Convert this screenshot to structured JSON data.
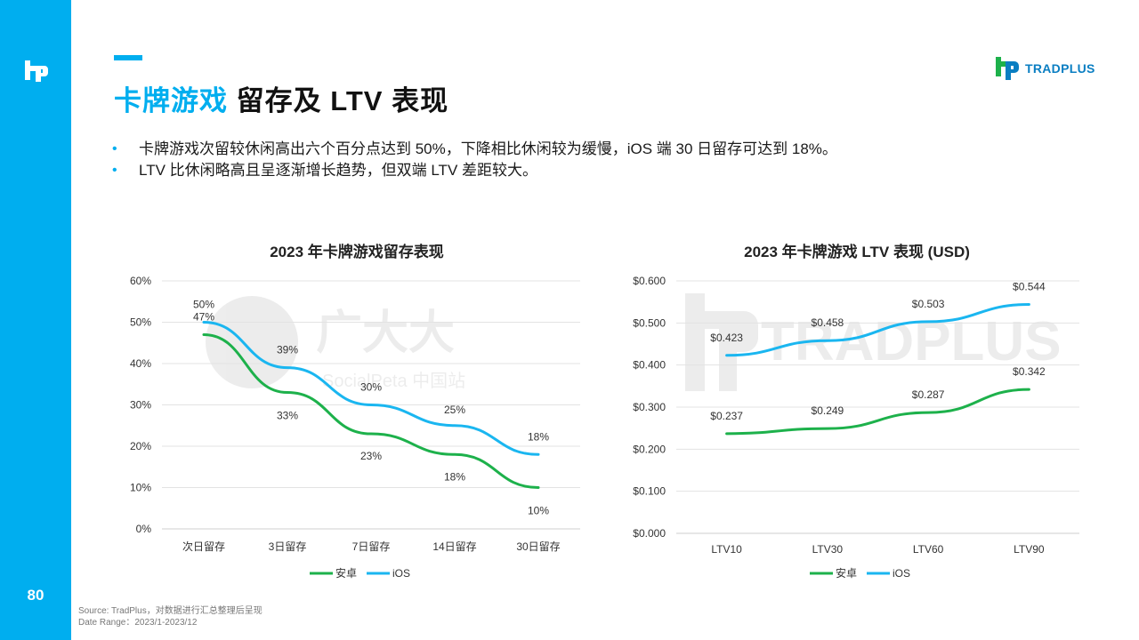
{
  "page": {
    "number": "80",
    "title_highlight": "卡牌游戏",
    "title_rest": "留存及 LTV 表现",
    "brand": "TRADPLUS",
    "bullets": [
      "卡牌游戏次留较休闲高出六个百分点达到 50%，下降相比休闲较为缓慢，iOS 端 30 日留存可达到 18%。",
      "LTV 比休闲略高且呈逐渐增长趋势，但双端 LTV 差距较大。"
    ],
    "source_line1": "Source: TradPlus，对数据进行汇总整理后呈现",
    "source_line2": "Date Range：2023/1-2023/12",
    "watermark_left_main": "广大大",
    "watermark_left_sub": "SocialPeta 中国站",
    "watermark_right": "TRADPLUS"
  },
  "colors": {
    "accent": "#00AEEF",
    "android": "#1DB14B",
    "ios": "#1AB6F0"
  },
  "chart_data": [
    {
      "type": "line",
      "title": "2023 年卡牌游戏留存表现",
      "categories": [
        "次日留存",
        "3日留存",
        "7日留存",
        "14日留存",
        "30日留存"
      ],
      "ylim": [
        0,
        60
      ],
      "y_ticks": [
        "0%",
        "10%",
        "20%",
        "30%",
        "40%",
        "50%",
        "60%"
      ],
      "y_tick_values": [
        0,
        10,
        20,
        30,
        40,
        50,
        60
      ],
      "series": [
        {
          "name": "安卓",
          "values": [
            47,
            33,
            23,
            18,
            10
          ],
          "labels": [
            "47%",
            "33%",
            "23%",
            "18%",
            "10%"
          ]
        },
        {
          "name": "iOS",
          "values": [
            50,
            39,
            30,
            25,
            18
          ],
          "labels": [
            "50%",
            "39%",
            "30%",
            "25%",
            "18%"
          ]
        }
      ],
      "legend_position": "bottom",
      "grid": true
    },
    {
      "type": "line",
      "title": "2023 年卡牌游戏 LTV 表现 (USD)",
      "categories": [
        "LTV10",
        "LTV30",
        "LTV60",
        "LTV90"
      ],
      "ylim": [
        0,
        0.6
      ],
      "y_ticks": [
        "$0.000",
        "$0.100",
        "$0.200",
        "$0.300",
        "$0.400",
        "$0.500",
        "$0.600"
      ],
      "y_tick_values": [
        0,
        0.1,
        0.2,
        0.3,
        0.4,
        0.5,
        0.6
      ],
      "series": [
        {
          "name": "安卓",
          "values": [
            0.237,
            0.249,
            0.287,
            0.342
          ],
          "labels": [
            "$0.237",
            "$0.249",
            "$0.287",
            "$0.342"
          ]
        },
        {
          "name": "iOS",
          "values": [
            0.423,
            0.458,
            0.503,
            0.544
          ],
          "labels": [
            "$0.423",
            "$0.458",
            "$0.503",
            "$0.544"
          ]
        }
      ],
      "legend_position": "bottom",
      "grid": true
    }
  ]
}
